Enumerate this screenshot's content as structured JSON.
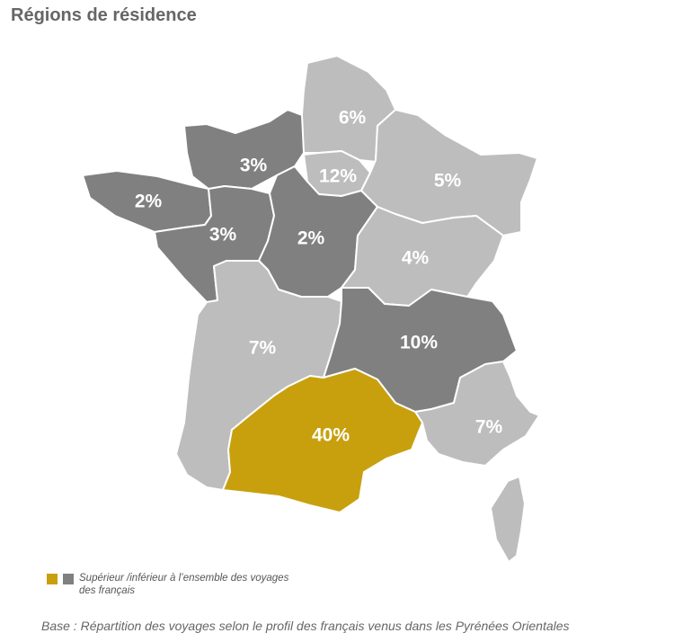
{
  "chart_data": {
    "type": "choropleth-map",
    "title": "Régions de résidence",
    "colors": {
      "highlight": "#c8a00e",
      "above_below": "#808080",
      "other": "#bdbdbd",
      "border": "#ffffff"
    },
    "regions": [
      {
        "id": "nord",
        "label": "6%",
        "value": 6,
        "category": "other"
      },
      {
        "id": "normandie",
        "label": "3%",
        "value": 3,
        "category": "above_below"
      },
      {
        "id": "ile-de-france",
        "label": "12%",
        "value": 12,
        "category": "other"
      },
      {
        "id": "est",
        "label": "5%",
        "value": 5,
        "category": "other"
      },
      {
        "id": "bretagne",
        "label": "2%",
        "value": 2,
        "category": "above_below"
      },
      {
        "id": "pays-de-la-loire",
        "label": "3%",
        "value": 3,
        "category": "above_below"
      },
      {
        "id": "centre",
        "label": "2%",
        "value": 2,
        "category": "above_below"
      },
      {
        "id": "bourgogne",
        "label": "4%",
        "value": 4,
        "category": "other"
      },
      {
        "id": "sud-ouest",
        "label": "7%",
        "value": 7,
        "category": "other"
      },
      {
        "id": "rhone-alpes",
        "label": "10%",
        "value": 10,
        "category": "above_below"
      },
      {
        "id": "sud-est",
        "label": "7%",
        "value": 7,
        "category": "other"
      },
      {
        "id": "sud",
        "label": "40%",
        "value": 40,
        "category": "highlight"
      },
      {
        "id": "corse",
        "label": "",
        "value": null,
        "category": "other"
      }
    ]
  },
  "legend": {
    "text": "Supérieur /inférieur à l’ensemble des voyages des français"
  },
  "footnote": "Base : Répartition des voyages selon le profil des français venus dans les Pyrénées Orientales"
}
